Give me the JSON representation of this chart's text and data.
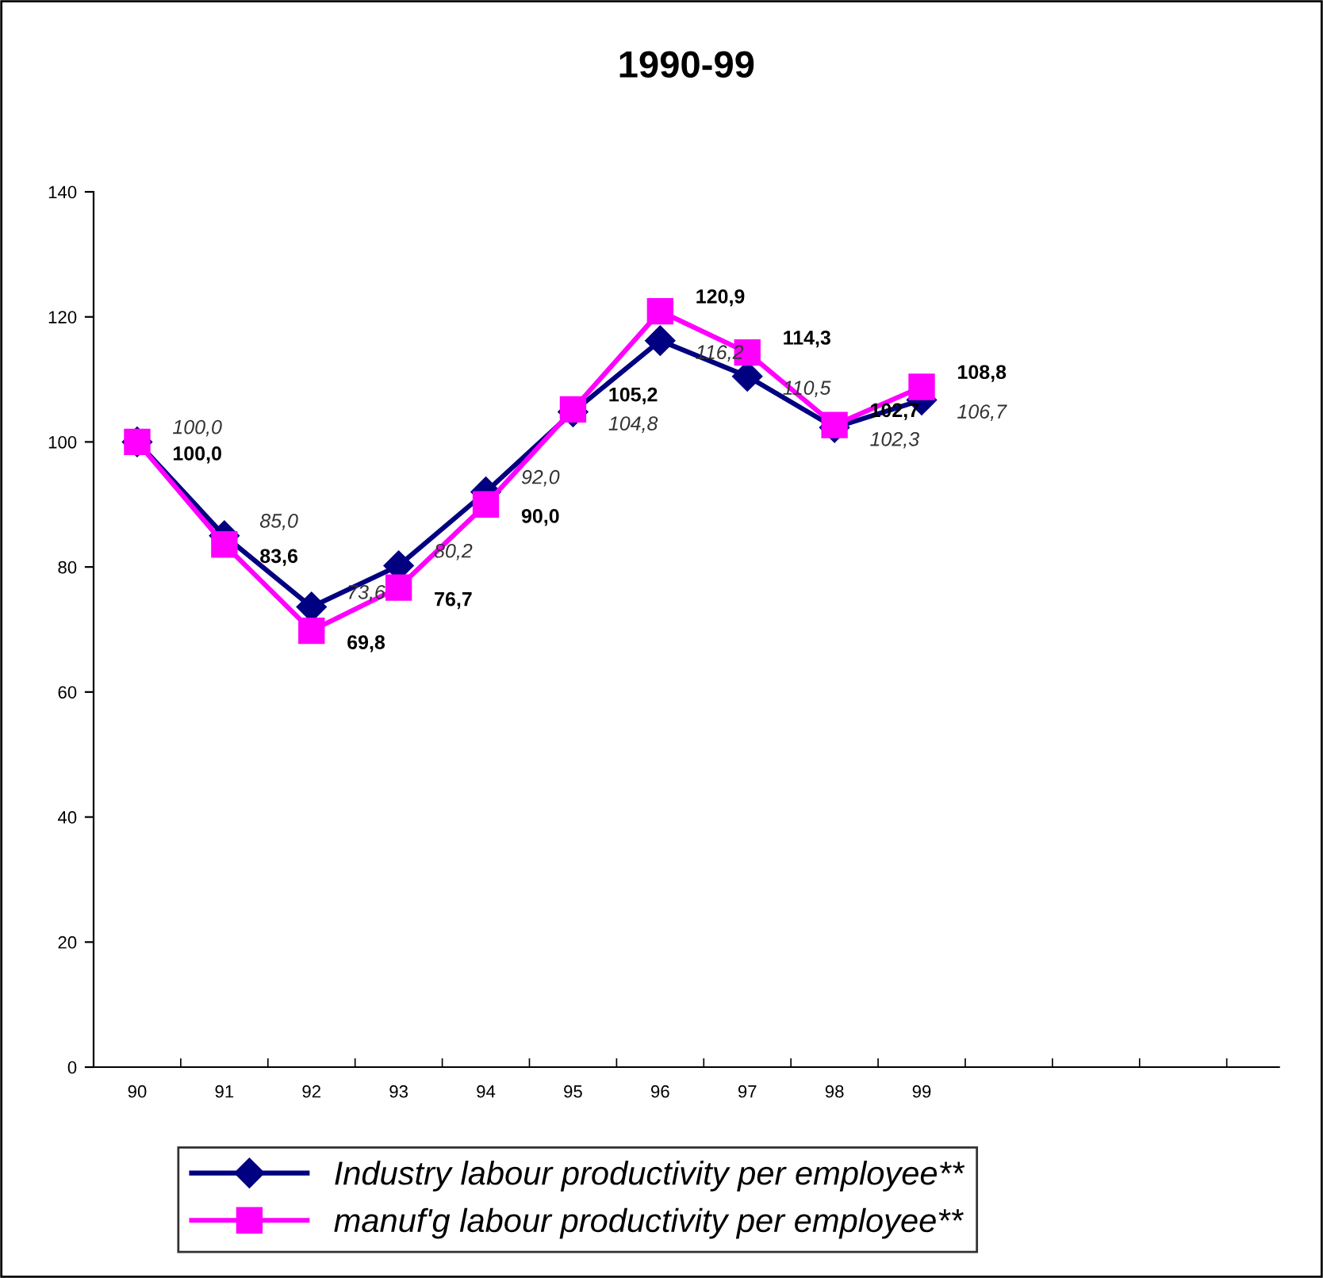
{
  "chart_data": {
    "type": "line",
    "title": "1990-99",
    "categories": [
      "90",
      "91",
      "92",
      "93",
      "94",
      "95",
      "96",
      "97",
      "98",
      "99",
      null,
      null,
      null
    ],
    "series": [
      {
        "name": "Industry labour productivity per employee**",
        "color": "#000080",
        "marker": "diamond",
        "values": [
          100.0,
          85.0,
          73.6,
          80.2,
          92.0,
          104.8,
          116.2,
          110.5,
          102.3,
          106.7,
          null,
          null,
          null
        ],
        "value_labels": [
          "100,0",
          "85,0",
          "73,6",
          "80,2",
          "92,0",
          "104,8",
          "116,2",
          "110,5",
          "102,3",
          "106,7",
          null,
          null,
          null
        ]
      },
      {
        "name": "manuf'g labour productivity per employee**",
        "color": "#ff00ff",
        "marker": "square",
        "values": [
          100.0,
          83.6,
          69.8,
          76.7,
          90.0,
          105.2,
          120.9,
          114.3,
          102.7,
          108.8,
          null,
          null,
          null
        ],
        "value_labels": [
          "100,0",
          "83,6",
          "69,8",
          "76,7",
          "90,0",
          "105,2",
          "120,9",
          "114,3",
          "102,7",
          "108,8",
          null,
          null,
          null
        ]
      }
    ],
    "ylim": [
      0,
      140
    ],
    "yticks": [
      0,
      20,
      40,
      60,
      80,
      100,
      120,
      140
    ],
    "grid": false,
    "legend": "bottom",
    "line_style": "solid"
  }
}
